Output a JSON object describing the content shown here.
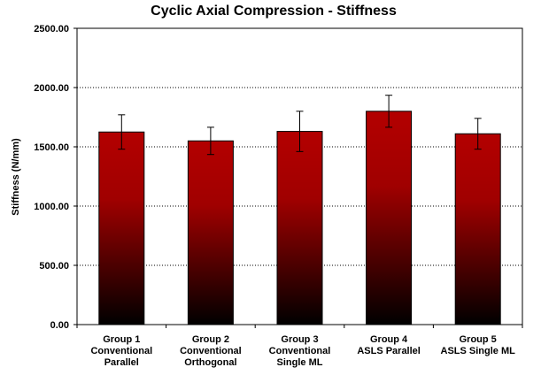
{
  "chart_data": {
    "type": "bar",
    "title": "Cyclic Axial Compression - Stiffness",
    "xlabel": "",
    "ylabel": "Stiffness (N/mm)",
    "ylim": [
      0,
      2500
    ],
    "yticks": [
      "0.00",
      "500.00",
      "1000.00",
      "1500.00",
      "2000.00",
      "2500.00"
    ],
    "ytick_values": [
      0,
      500,
      1000,
      1500,
      2000,
      2500
    ],
    "grid": "horizontal dotted",
    "legend": "none",
    "categories": [
      [
        "Group 1",
        "Conventional",
        "Parallel"
      ],
      [
        "Group 2",
        "Conventional",
        "Orthogonal"
      ],
      [
        "Group 3",
        "Conventional",
        "Single ML"
      ],
      [
        "Group 4",
        "ASLS Parallel"
      ],
      [
        "Group 5",
        "ASLS Single ML"
      ]
    ],
    "values": [
      1625,
      1550,
      1630,
      1800,
      1610
    ],
    "error": [
      145,
      115,
      170,
      135,
      130
    ],
    "bar_gradient": [
      "#b30000",
      "#000000"
    ]
  }
}
